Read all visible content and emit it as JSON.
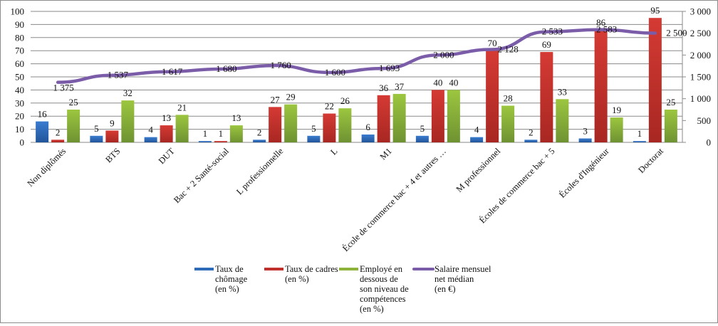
{
  "chart_data": {
    "type": "bar",
    "title": "",
    "xlabel": "",
    "ylabel": "",
    "categories": [
      "Non diplômés",
      "BTS",
      "DUT",
      "Bac + 2 Santé-social",
      "L professionnelle",
      "L",
      "M1",
      "École de commerce bac + 4 et autres …",
      "M professionnel",
      "Écoles de commerce bac + 5",
      "Écoles d'Ingénieur",
      "Doctorat"
    ],
    "series": [
      {
        "name": "Taux de chômage (en %)",
        "legend_lines": [
          "Taux de",
          "chômage",
          "(en %)"
        ],
        "type": "bar",
        "axis": "left",
        "color": "#2e6bb8",
        "values": [
          16,
          5,
          4,
          1,
          2,
          5,
          6,
          5,
          4,
          2,
          3,
          1
        ],
        "labels": [
          "16",
          "5",
          "4",
          "1",
          "2",
          "5",
          "6",
          "5",
          "4",
          "2",
          "3",
          "1"
        ]
      },
      {
        "name": "Taux de cadres (en %)",
        "legend_lines": [
          "Taux de cadres",
          "(en %)"
        ],
        "type": "bar",
        "axis": "left",
        "color": "#c0302c",
        "values": [
          2,
          9,
          13,
          1,
          27,
          22,
          36,
          40,
          70,
          69,
          86,
          95
        ],
        "labels": [
          "2",
          "9",
          "13",
          "1",
          "27",
          "22",
          "36",
          "40",
          "70",
          "69",
          "86",
          "95"
        ]
      },
      {
        "name": "Employé en dessous de son niveau de compétences (en %)",
        "legend_lines": [
          "Employé en",
          "dessous de",
          "son niveau de",
          "compétences",
          "(en %)"
        ],
        "type": "bar",
        "axis": "left",
        "color": "#8db33a",
        "values": [
          25,
          32,
          21,
          13,
          29,
          26,
          37,
          40,
          28,
          33,
          19,
          25
        ],
        "labels": [
          "25",
          "32",
          "21",
          "13",
          "29",
          "26",
          "37",
          "40",
          "28",
          "33",
          "19",
          "25"
        ]
      },
      {
        "name": "Salaire mensuel net médian (en €)",
        "legend_lines": [
          "Salaire mensuel",
          "net médian",
          "(en €)"
        ],
        "type": "line",
        "axis": "right",
        "color": "#7b5ca8",
        "values": [
          1375,
          1537,
          1617,
          1680,
          1760,
          1600,
          1693,
          2000,
          2128,
          2533,
          2583,
          2500
        ],
        "labels": [
          "1 375",
          "1 537",
          "1 617",
          "1 680",
          "1 760",
          "1 600",
          "1 693",
          "2 000",
          "2 128",
          "2 533",
          "2 583",
          "2 500"
        ]
      }
    ],
    "y_left": {
      "range": [
        0,
        100
      ],
      "ticks": [
        0,
        10,
        20,
        30,
        40,
        50,
        60,
        70,
        80,
        90,
        100
      ],
      "tick_labels": [
        "0",
        "10",
        "20",
        "30",
        "40",
        "50",
        "60",
        "70",
        "80",
        "90",
        "100"
      ]
    },
    "y_right": {
      "range": [
        0,
        3000
      ],
      "ticks": [
        0,
        500,
        1000,
        1500,
        2000,
        2500,
        3000
      ],
      "tick_labels": [
        "0",
        "500",
        "1 000",
        "1 500",
        "2 000",
        "2 500",
        "3 000"
      ]
    },
    "grid": true,
    "legend_position": "bottom"
  }
}
